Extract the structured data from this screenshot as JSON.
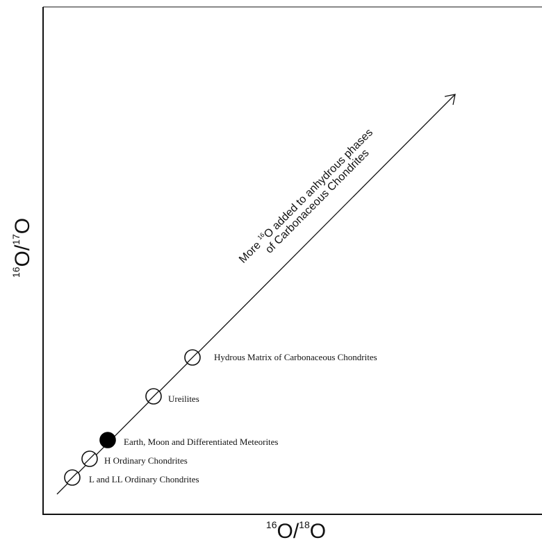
{
  "diagram": {
    "x_axis": {
      "sup1": "16",
      "main1": "O/",
      "sup2": "18",
      "main2": "O"
    },
    "y_axis": {
      "sup1": "16",
      "main1": "O/",
      "sup2": "17",
      "main2": "O"
    },
    "arrow_annotation": {
      "line1_a": "More ",
      "line1_sup": "16",
      "line1_b": "O added to anhydrous phases",
      "line2": "of Carbonaceous Chondrites"
    },
    "points": [
      {
        "id": "l-ll",
        "label": "L and LL Ordinary Chondrites",
        "filled": false
      },
      {
        "id": "h",
        "label": "H Ordinary Chondrites",
        "filled": false
      },
      {
        "id": "earth",
        "label": "Earth, Moon and Differentiated Meteorites",
        "filled": true
      },
      {
        "id": "ureilites",
        "label": "Ureilites",
        "filled": false
      },
      {
        "id": "hydrous",
        "label": "Hydrous Matrix of Carbonaceous Chondrites",
        "filled": false
      }
    ],
    "colors": {
      "line": "#111111",
      "fill": "#000000",
      "background": "#ffffff"
    }
  }
}
